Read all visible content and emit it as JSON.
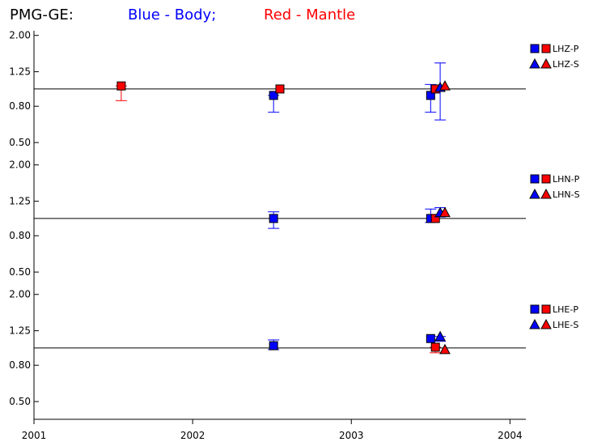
{
  "chart_data": {
    "type": "scatter",
    "title": {
      "station": "PMG-GE:",
      "body_label": "Blue - Body;",
      "mantle_label": "Red - Mantle"
    },
    "colors": {
      "body": "#0000ff",
      "mantle": "#ff0000",
      "axis": "#000000"
    },
    "x_axis": {
      "range": [
        2001.0,
        2004.1
      ],
      "ticks": [
        2001,
        2002,
        2003,
        2004
      ],
      "tick_labels": [
        "2001",
        "2002",
        "2003",
        "2004"
      ]
    },
    "y_scale": "log",
    "y_range": [
      0.48,
      2.08
    ],
    "y_ticks": [
      0.5,
      0.8,
      1.25,
      2.0
    ],
    "y_tick_labels": [
      "0.50",
      "0.80",
      "1.25",
      "2.00"
    ],
    "reference_line": 1.0,
    "panels": [
      {
        "name": "LHZ",
        "legend": [
          "LHZ-P",
          "LHZ-S"
        ],
        "points": [
          {
            "phase": "P",
            "color": "mantle",
            "x": 2001.55,
            "y": 1.04,
            "lo": 0.86,
            "hi": 1.04
          },
          {
            "phase": "P",
            "color": "body",
            "x": 2002.51,
            "y": 0.92,
            "lo": 0.74,
            "hi": 0.92
          },
          {
            "phase": "P",
            "color": "mantle",
            "x": 2002.55,
            "y": 1.0,
            "lo": 1.0,
            "hi": 1.0
          },
          {
            "phase": "P",
            "color": "body",
            "x": 2003.5,
            "y": 0.92,
            "lo": 0.74,
            "hi": 1.06
          },
          {
            "phase": "P",
            "color": "mantle",
            "x": 2003.53,
            "y": 1.0,
            "lo": 1.0,
            "hi": 1.0
          },
          {
            "phase": "S",
            "color": "body",
            "x": 2003.56,
            "y": 1.02,
            "lo": 0.67,
            "hi": 1.4
          },
          {
            "phase": "S",
            "color": "mantle",
            "x": 2003.59,
            "y": 1.04,
            "lo": 1.04,
            "hi": 1.04
          }
        ]
      },
      {
        "name": "LHN",
        "legend": [
          "LHN-P",
          "LHN-S"
        ],
        "points": [
          {
            "phase": "P",
            "color": "body",
            "x": 2002.51,
            "y": 1.0,
            "lo": 0.88,
            "hi": 1.09
          },
          {
            "phase": "P",
            "color": "body",
            "x": 2003.5,
            "y": 1.0,
            "lo": 0.95,
            "hi": 1.13
          },
          {
            "phase": "P",
            "color": "mantle",
            "x": 2003.53,
            "y": 1.0,
            "lo": 1.0,
            "hi": 1.0
          },
          {
            "phase": "S",
            "color": "body",
            "x": 2003.56,
            "y": 1.08,
            "lo": 1.02,
            "hi": 1.15
          },
          {
            "phase": "S",
            "color": "mantle",
            "x": 2003.59,
            "y": 1.08,
            "lo": 1.08,
            "hi": 1.08
          }
        ]
      },
      {
        "name": "LHE",
        "legend": [
          "LHE-P",
          "LHE-S"
        ],
        "points": [
          {
            "phase": "P",
            "color": "body",
            "x": 2002.51,
            "y": 1.03,
            "lo": 0.98,
            "hi": 1.11
          },
          {
            "phase": "P",
            "color": "body",
            "x": 2003.5,
            "y": 1.13,
            "lo": 1.13,
            "hi": 1.13
          },
          {
            "phase": "P",
            "color": "mantle",
            "x": 2003.53,
            "y": 1.01,
            "lo": 0.94,
            "hi": 1.01
          },
          {
            "phase": "S",
            "color": "body",
            "x": 2003.56,
            "y": 1.16,
            "lo": 1.09,
            "hi": 1.16
          },
          {
            "phase": "S",
            "color": "mantle",
            "x": 2003.59,
            "y": 0.98,
            "lo": 0.98,
            "hi": 0.98
          }
        ]
      }
    ]
  }
}
